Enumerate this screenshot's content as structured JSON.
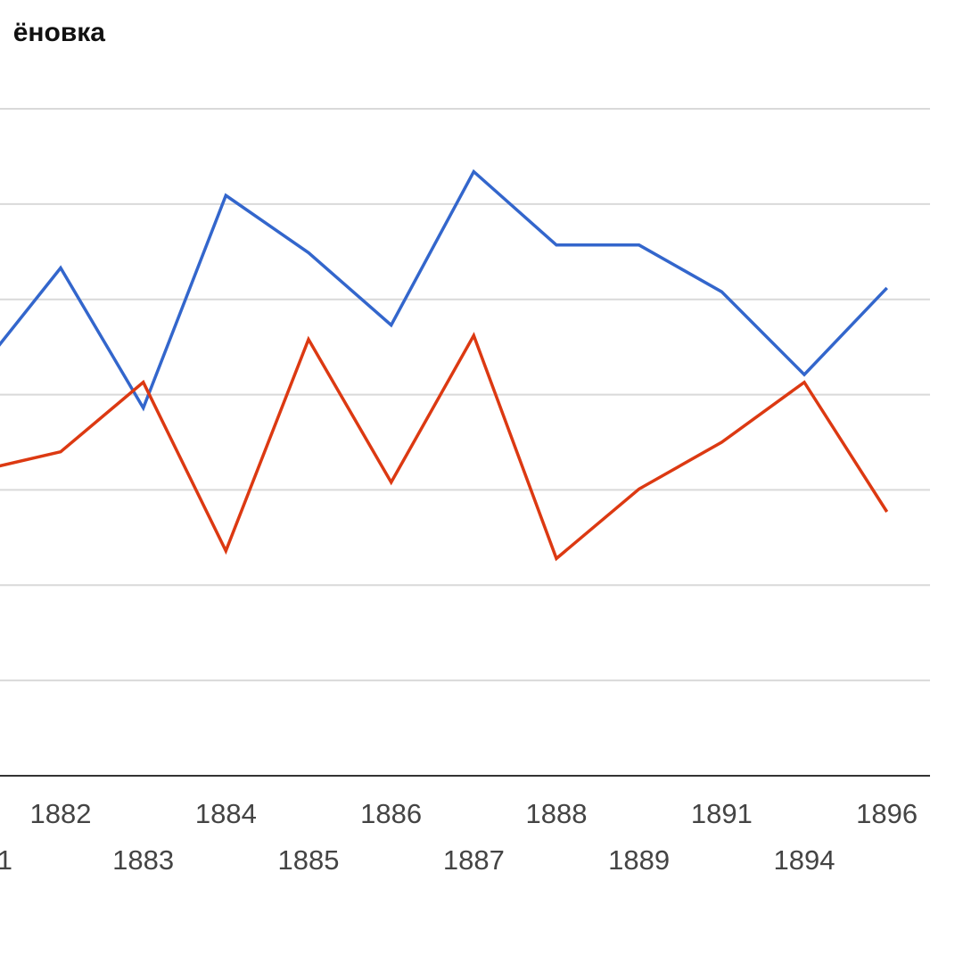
{
  "chart_data": {
    "type": "line",
    "title": "ёновка",
    "categories": [
      "1",
      "1882",
      "1883",
      "1884",
      "1885",
      "1886",
      "1887",
      "1888",
      "1889",
      "1891",
      "1894",
      "1896"
    ],
    "series": [
      {
        "color": "#3366cc",
        "values": [
          4.24,
          5.33,
          3.86,
          6.09,
          5.49,
          4.73,
          6.34,
          5.57,
          5.57,
          5.08,
          4.21,
          5.12
        ]
      },
      {
        "color": "#dc3912",
        "values": [
          3.2,
          3.4,
          4.13,
          2.36,
          4.58,
          3.08,
          4.62,
          2.28,
          3.01,
          3.5,
          4.13,
          2.77
        ]
      }
    ],
    "ylim": [
      0,
      7
    ],
    "grid": true
  }
}
